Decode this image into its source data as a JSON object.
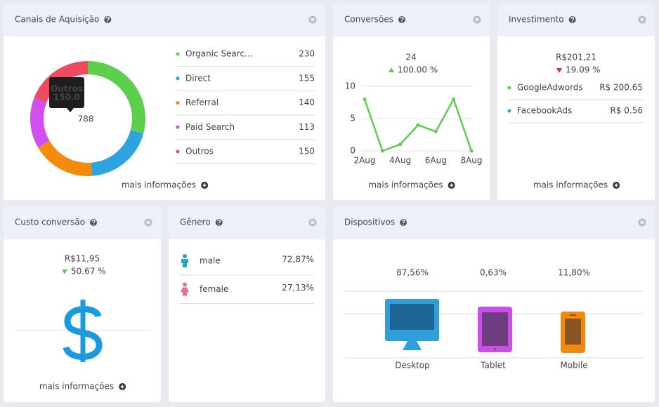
{
  "acquisition": {
    "title": "Canais de Aquisição",
    "more": "mais informações"
  },
  "conversions": {
    "title": "Conversões",
    "value": "24",
    "change": "100.00 %",
    "more": "mais informações"
  },
  "investment": {
    "title": "Investimento",
    "value": "R$201,21",
    "change": "19.09 %",
    "items": [
      {
        "name": "GoogleAdwords",
        "value": "R$ 200.65",
        "color": "#5ccf4f"
      },
      {
        "name": "FacebookAds",
        "value": "R$ 0.56",
        "color": "#2fa3e0"
      }
    ],
    "more": "mais informações"
  },
  "cost": {
    "title": "Custo conversão",
    "value": "R$11,95",
    "change": "50.67 %",
    "more": "mais informações"
  },
  "gender": {
    "title": "Gênero",
    "rows": [
      {
        "label": "male",
        "value": "72,87%",
        "color": "#2aa3c8"
      },
      {
        "label": "female",
        "value": "27,13%",
        "color": "#e8708a"
      }
    ]
  },
  "devices": {
    "title": "Dispositivos",
    "items": [
      {
        "label": "Desktop",
        "value": "87,56%",
        "color": "#2f9fdc"
      },
      {
        "label": "Tablet",
        "value": "0,63%",
        "color": "#c84fe8"
      },
      {
        "label": "Mobile",
        "value": "11,80%",
        "color": "#f0890e"
      }
    ]
  },
  "chart_data": [
    {
      "type": "pie",
      "categories": [
        "Organic Searc...",
        "Direct",
        "Referral",
        "Paid Search",
        "Outros"
      ],
      "values": [
        230,
        155,
        140,
        113,
        150
      ],
      "colors": [
        "#5ccf4f",
        "#2fa3e0",
        "#f38b0c",
        "#cf4ff0",
        "#f04a60"
      ],
      "total": 788,
      "tooltip": {
        "name": "Outros",
        "value_label": "150.0"
      }
    },
    {
      "type": "line",
      "categories": [
        "2Aug",
        null,
        "4Aug",
        null,
        "6Aug",
        null,
        "8Aug"
      ],
      "values": [
        8,
        0,
        1,
        4,
        3,
        8,
        0
      ],
      "color": "#5ccf4f",
      "ylim": [
        0,
        10
      ],
      "yticks": [
        0,
        5,
        10
      ],
      "grid": true
    }
  ]
}
